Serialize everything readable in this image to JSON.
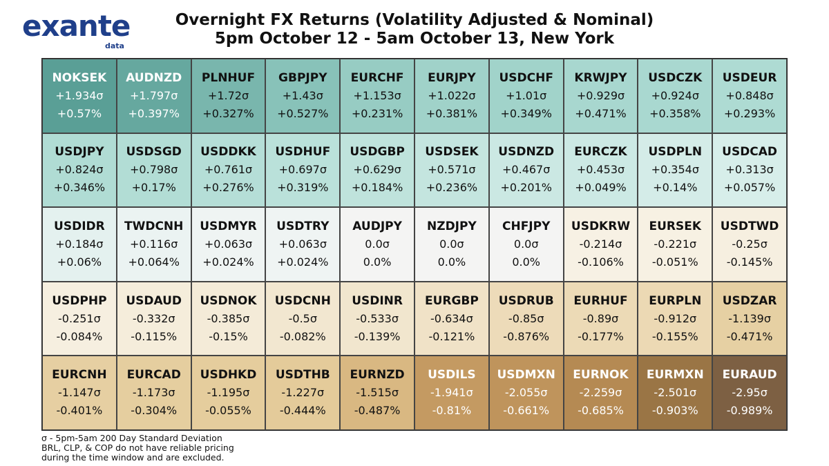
{
  "header": {
    "logo_word": "exante",
    "logo_sub": "data",
    "title_line1": "Overnight FX Returns (Volatility Adjusted & Nominal)",
    "title_line2": "5pm October 12 - 5am October 13, New York"
  },
  "footnote": {
    "line1": "σ - 5pm-5am 200 Day Standard Deviation",
    "line2": "BRL, CLP, & COP do not have reliable pricing",
    "line3": "during the time window and are excluded."
  },
  "chart_data": {
    "type": "table",
    "columns": 10,
    "rows": 5,
    "cells": [
      {
        "pair": "NOKSEK",
        "sigma": "+1.934σ",
        "pct": "+0.57%",
        "bg": "#5a9f96",
        "fg": "#ffffff"
      },
      {
        "pair": "AUDNZD",
        "sigma": "+1.797σ",
        "pct": "+0.397%",
        "bg": "#66a89f",
        "fg": "#ffffff"
      },
      {
        "pair": "PLNHUF",
        "sigma": "+1.72σ",
        "pct": "+0.327%",
        "bg": "#79b6ad",
        "fg": "#111111"
      },
      {
        "pair": "GBPJPY",
        "sigma": "+1.43σ",
        "pct": "+0.527%",
        "bg": "#88c2b9",
        "fg": "#111111"
      },
      {
        "pair": "EURCHF",
        "sigma": "+1.153σ",
        "pct": "+0.231%",
        "bg": "#97ccc3",
        "fg": "#111111"
      },
      {
        "pair": "EURJPY",
        "sigma": "+1.022σ",
        "pct": "+0.381%",
        "bg": "#a0d2c9",
        "fg": "#111111"
      },
      {
        "pair": "USDCHF",
        "sigma": "+1.01σ",
        "pct": "+0.349%",
        "bg": "#a1d3ca",
        "fg": "#111111"
      },
      {
        "pair": "KRWJPY",
        "sigma": "+0.929σ",
        "pct": "+0.471%",
        "bg": "#a8d7cf",
        "fg": "#111111"
      },
      {
        "pair": "USDCZK",
        "sigma": "+0.924σ",
        "pct": "+0.358%",
        "bg": "#a9d8d0",
        "fg": "#111111"
      },
      {
        "pair": "USDEUR",
        "sigma": "+0.848σ",
        "pct": "+0.293%",
        "bg": "#aedbd3",
        "fg": "#111111"
      },
      {
        "pair": "USDJPY",
        "sigma": "+0.824σ",
        "pct": "+0.346%",
        "bg": "#b0dcd4",
        "fg": "#111111"
      },
      {
        "pair": "USDSGD",
        "sigma": "+0.798σ",
        "pct": "+0.17%",
        "bg": "#b2ddd5",
        "fg": "#111111"
      },
      {
        "pair": "USDDKK",
        "sigma": "+0.761σ",
        "pct": "+0.276%",
        "bg": "#b5ded7",
        "fg": "#111111"
      },
      {
        "pair": "USDHUF",
        "sigma": "+0.697σ",
        "pct": "+0.319%",
        "bg": "#bae1da",
        "fg": "#111111"
      },
      {
        "pair": "USDGBP",
        "sigma": "+0.629σ",
        "pct": "+0.184%",
        "bg": "#bfe3dc",
        "fg": "#111111"
      },
      {
        "pair": "USDSEK",
        "sigma": "+0.571σ",
        "pct": "+0.236%",
        "bg": "#c4e5df",
        "fg": "#111111"
      },
      {
        "pair": "USDNZD",
        "sigma": "+0.467σ",
        "pct": "+0.201%",
        "bg": "#cbe8e3",
        "fg": "#111111"
      },
      {
        "pair": "EURCZK",
        "sigma": "+0.453σ",
        "pct": "+0.049%",
        "bg": "#cce9e4",
        "fg": "#111111"
      },
      {
        "pair": "USDPLN",
        "sigma": "+0.354σ",
        "pct": "+0.14%",
        "bg": "#d4ece8",
        "fg": "#111111"
      },
      {
        "pair": "USDCAD",
        "sigma": "+0.313σ",
        "pct": "+0.057%",
        "bg": "#d7eeea",
        "fg": "#111111"
      },
      {
        "pair": "USDIDR",
        "sigma": "+0.184σ",
        "pct": "+0.06%",
        "bg": "#e4f1ef",
        "fg": "#111111"
      },
      {
        "pair": "TWDCNH",
        "sigma": "+0.116σ",
        "pct": "+0.064%",
        "bg": "#ebf3f2",
        "fg": "#111111"
      },
      {
        "pair": "USDMYR",
        "sigma": "+0.063σ",
        "pct": "+0.024%",
        "bg": "#eff4f3",
        "fg": "#111111"
      },
      {
        "pair": "USDTRY",
        "sigma": "+0.063σ",
        "pct": "+0.024%",
        "bg": "#eff4f3",
        "fg": "#111111"
      },
      {
        "pair": "AUDJPY",
        "sigma": "0.0σ",
        "pct": "0.0%",
        "bg": "#f4f4f3",
        "fg": "#111111"
      },
      {
        "pair": "NZDJPY",
        "sigma": "0.0σ",
        "pct": "0.0%",
        "bg": "#f4f4f3",
        "fg": "#111111"
      },
      {
        "pair": "CHFJPY",
        "sigma": "0.0σ",
        "pct": "0.0%",
        "bg": "#f4f4f3",
        "fg": "#111111"
      },
      {
        "pair": "USDKRW",
        "sigma": "-0.214σ",
        "pct": "-0.106%",
        "bg": "#f7f1e4",
        "fg": "#111111"
      },
      {
        "pair": "EURSEK",
        "sigma": "-0.221σ",
        "pct": "-0.051%",
        "bg": "#f7f1e3",
        "fg": "#111111"
      },
      {
        "pair": "USDTWD",
        "sigma": "-0.25σ",
        "pct": "-0.145%",
        "bg": "#f6efe0",
        "fg": "#111111"
      },
      {
        "pair": "USDPHP",
        "sigma": "-0.251σ",
        "pct": "-0.084%",
        "bg": "#f6efe0",
        "fg": "#111111"
      },
      {
        "pair": "USDAUD",
        "sigma": "-0.332σ",
        "pct": "-0.115%",
        "bg": "#f5eddb",
        "fg": "#111111"
      },
      {
        "pair": "USDNOK",
        "sigma": "-0.385σ",
        "pct": "-0.15%",
        "bg": "#f4ebd8",
        "fg": "#111111"
      },
      {
        "pair": "USDCNH",
        "sigma": "-0.5σ",
        "pct": "-0.082%",
        "bg": "#f2e7d0",
        "fg": "#111111"
      },
      {
        "pair": "USDINR",
        "sigma": "-0.533σ",
        "pct": "-0.139%",
        "bg": "#f1e6ce",
        "fg": "#111111"
      },
      {
        "pair": "EURGBP",
        "sigma": "-0.634σ",
        "pct": "-0.121%",
        "bg": "#f0e2c7",
        "fg": "#111111"
      },
      {
        "pair": "USDRUB",
        "sigma": "-0.85σ",
        "pct": "-0.876%",
        "bg": "#eddbb9",
        "fg": "#111111"
      },
      {
        "pair": "EURHUF",
        "sigma": "-0.89σ",
        "pct": "-0.177%",
        "bg": "#ecdab6",
        "fg": "#111111"
      },
      {
        "pair": "EURPLN",
        "sigma": "-0.912σ",
        "pct": "-0.155%",
        "bg": "#ecd9b4",
        "fg": "#111111"
      },
      {
        "pair": "USDZAR",
        "sigma": "-1.139σ",
        "pct": "-0.471%",
        "bg": "#e6d0a3",
        "fg": "#111111"
      },
      {
        "pair": "EURCNH",
        "sigma": "-1.147σ",
        "pct": "-0.401%",
        "bg": "#e6cfa2",
        "fg": "#111111"
      },
      {
        "pair": "EURCAD",
        "sigma": "-1.173σ",
        "pct": "-0.304%",
        "bg": "#e5ce9f",
        "fg": "#111111"
      },
      {
        "pair": "USDHKD",
        "sigma": "-1.195σ",
        "pct": "-0.055%",
        "bg": "#e5cd9d",
        "fg": "#111111"
      },
      {
        "pair": "USDTHB",
        "sigma": "-1.227σ",
        "pct": "-0.444%",
        "bg": "#e4cb9a",
        "fg": "#111111"
      },
      {
        "pair": "EURNZD",
        "sigma": "-1.515σ",
        "pct": "-0.487%",
        "bg": "#d9b882",
        "fg": "#111111"
      },
      {
        "pair": "USDILS",
        "sigma": "-1.941σ",
        "pct": "-0.81%",
        "bg": "#c49a62",
        "fg": "#ffffff"
      },
      {
        "pair": "USDMXN",
        "sigma": "-2.055σ",
        "pct": "-0.661%",
        "bg": "#bf945c",
        "fg": "#ffffff"
      },
      {
        "pair": "EURNOK",
        "sigma": "-2.259σ",
        "pct": "-0.685%",
        "bg": "#b58a53",
        "fg": "#ffffff"
      },
      {
        "pair": "EURMXN",
        "sigma": "-2.501σ",
        "pct": "-0.903%",
        "bg": "#9a7545",
        "fg": "#ffffff"
      },
      {
        "pair": "EURAUD",
        "sigma": "-2.95σ",
        "pct": "-0.989%",
        "bg": "#7d6043",
        "fg": "#ffffff"
      }
    ]
  }
}
